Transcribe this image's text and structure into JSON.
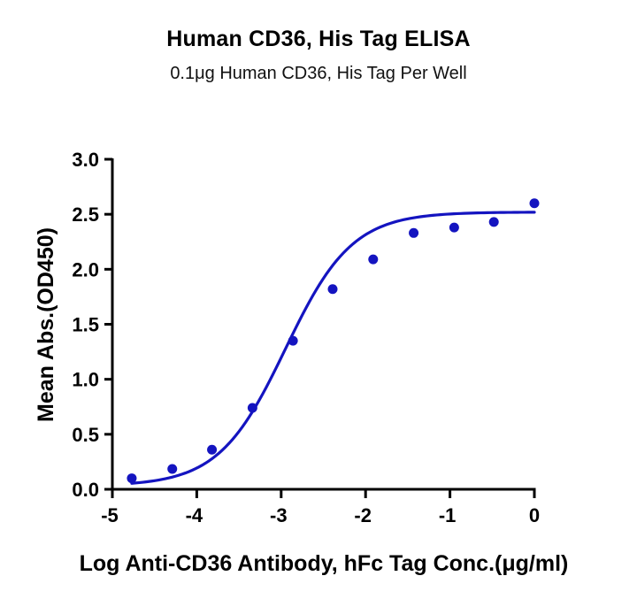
{
  "chart_data": {
    "type": "scatter",
    "title": "Human CD36, His Tag ELISA",
    "subtitle": "0.1μg Human CD36, His Tag Per Well",
    "xlabel": "Log Anti-CD36 Antibody, hFc Tag Conc.(μg/ml)",
    "ylabel": "Mean Abs.(OD450)",
    "xlim": [
      -5,
      0
    ],
    "ylim": [
      0,
      3.0
    ],
    "x_ticks": [
      -5,
      -4,
      -3,
      -2,
      -1,
      0
    ],
    "x_tick_labels": [
      "-5",
      "-4",
      "-3",
      "-2",
      "-1",
      "0"
    ],
    "y_ticks": [
      0,
      0.5,
      1.0,
      1.5,
      2.0,
      2.5,
      3.0
    ],
    "y_tick_labels": [
      "0.0",
      "0.5",
      "1.0",
      "1.5",
      "2.0",
      "2.5",
      "3.0"
    ],
    "grid": false,
    "legend": null,
    "series": [
      {
        "name": "Mean Abs.(OD450)",
        "color": "#1414c0",
        "marker": "circle",
        "x": [
          -4.77,
          -4.29,
          -3.82,
          -3.34,
          -2.86,
          -2.39,
          -1.91,
          -1.43,
          -0.95,
          -0.48,
          0.0
        ],
        "y": [
          0.1,
          0.185,
          0.36,
          0.74,
          1.35,
          1.82,
          2.09,
          2.33,
          2.38,
          2.43,
          2.6
        ]
      }
    ],
    "fit": {
      "model": "4PL sigmoidal",
      "bottom": 0.03,
      "top": 2.52,
      "logEC50": -2.95,
      "hill": 1.1,
      "x_range": [
        -4.77,
        0.0
      ],
      "color": "#1414c0"
    }
  }
}
